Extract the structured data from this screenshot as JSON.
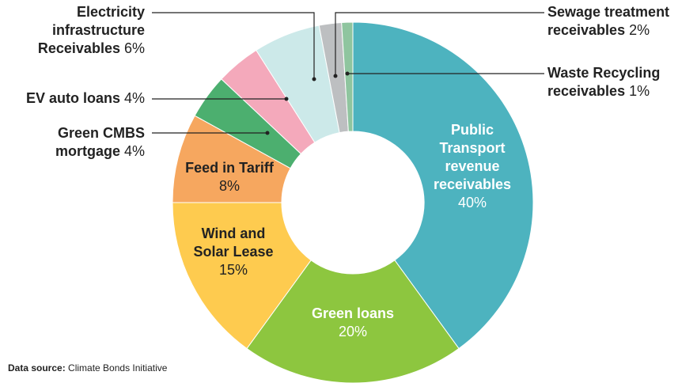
{
  "chart_data": {
    "type": "donut",
    "categories": [
      "Public Transport revenue receivables",
      "Green loans",
      "Wind and Solar Lease",
      "Feed in Tariff",
      "Green CMBS mortgage",
      "EV auto loans",
      "Electricity infrastructure Receivables",
      "Sewage treatment receivables",
      "Waste Recycling receivables"
    ],
    "values": [
      40,
      20,
      15,
      8,
      4,
      4,
      6,
      2,
      1
    ],
    "value_labels": [
      "40%",
      "20%",
      "15%",
      "8%",
      "4%",
      "4%",
      "6%",
      "2%",
      "1%"
    ],
    "colors": [
      "#4db3bf",
      "#8dc63f",
      "#fecb4f",
      "#f6a75f",
      "#4caf6f",
      "#f4a9bb",
      "#cce9e9",
      "#bdbfc1",
      "#8fc59f"
    ],
    "source_label": "Data source:",
    "source": "Climate Bonds Initiative"
  }
}
